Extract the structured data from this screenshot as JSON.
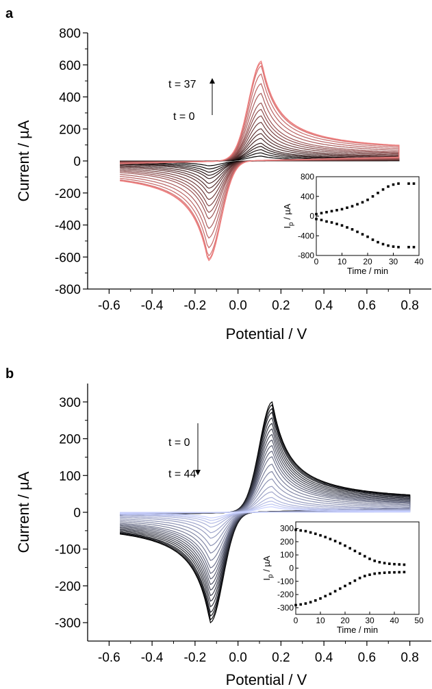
{
  "chart_data": [
    {
      "panel": "a",
      "type": "line",
      "xlabel": "Potential / V",
      "ylabel": "Current / µA",
      "xlim": [
        -0.7,
        0.9
      ],
      "ylim": [
        -800,
        800
      ],
      "xticks": [
        -0.6,
        -0.4,
        -0.2,
        0.0,
        0.2,
        0.4,
        0.6,
        0.8
      ],
      "yticks": [
        -800,
        -600,
        -400,
        -200,
        0,
        200,
        400,
        600,
        800
      ],
      "xtick_labels": [
        "-0.6",
        "-0.4",
        "-0.2",
        "0.0",
        "0.2",
        "0.4",
        "0.6",
        "0.8"
      ],
      "ytick_labels": [
        "-800",
        "-600",
        "-400",
        "-200",
        "0",
        "200",
        "400",
        "600",
        "800"
      ],
      "annotations": [
        "t = 37",
        "t = 0"
      ],
      "arrow_direction": "up",
      "cv_model": {
        "potential_range": [
          -0.55,
          0.75
        ],
        "anodic_peak_potential": 0.11,
        "cathodic_peak_potential": -0.14,
        "peak_currents": [
          30,
          50,
          70,
          90,
          110,
          140,
          170,
          200,
          240,
          280,
          320,
          360,
          420,
          480,
          540,
          590,
          610,
          620
        ],
        "color_start": "#000000",
        "color_end": "#f08080"
      },
      "inset": {
        "type": "scatter",
        "xlabel": "Time / min",
        "ylabel_main": "I",
        "ylabel_sub": "p",
        "ylabel_unit": " / µA",
        "xlim": [
          0,
          40
        ],
        "ylim": [
          -800,
          800
        ],
        "xticks": [
          0,
          10,
          20,
          30,
          40
        ],
        "yticks": [
          -800,
          -400,
          0,
          400,
          800
        ],
        "xtick_labels": [
          "0",
          "10",
          "20",
          "30",
          "40"
        ],
        "ytick_labels": [
          "-800",
          "-400",
          "0",
          "400",
          "800"
        ],
        "series": [
          {
            "x": [
              0,
              2,
              4,
              6,
              8,
              10,
              12,
              14,
              16,
              18,
              20,
              22,
              24,
              26,
              28,
              30,
              32,
              36,
              38
            ],
            "y": [
              40,
              60,
              80,
              100,
              120,
              140,
              170,
              200,
              240,
              280,
              330,
              400,
              470,
              540,
              600,
              640,
              660,
              660,
              660
            ]
          },
          {
            "x": [
              0,
              2,
              4,
              6,
              8,
              10,
              12,
              14,
              16,
              18,
              20,
              22,
              24,
              26,
              28,
              30,
              32,
              36,
              38
            ],
            "y": [
              -60,
              -80,
              -110,
              -130,
              -160,
              -190,
              -230,
              -270,
              -320,
              -370,
              -420,
              -480,
              -530,
              -570,
              -600,
              -620,
              -630,
              -630,
              -630
            ]
          }
        ]
      }
    },
    {
      "panel": "b",
      "type": "line",
      "xlabel": "Potential / V",
      "ylabel": "Current / µA",
      "xlim": [
        -0.7,
        0.9
      ],
      "ylim": [
        -350,
        350
      ],
      "xticks": [
        -0.6,
        -0.4,
        -0.2,
        0.0,
        0.2,
        0.4,
        0.6,
        0.8
      ],
      "yticks": [
        -300,
        -200,
        -100,
        0,
        100,
        200,
        300
      ],
      "xtick_labels": [
        "-0.6",
        "-0.4",
        "-0.2",
        "0.0",
        "0.2",
        "0.4",
        "0.6",
        "0.8"
      ],
      "ytick_labels": [
        "-300",
        "-200",
        "-100",
        "0",
        "100",
        "200",
        "300"
      ],
      "annotations": [
        "t = 0",
        "t = 44"
      ],
      "arrow_direction": "down",
      "cv_model": {
        "potential_range": [
          -0.55,
          0.8
        ],
        "anodic_peak_potential": 0.16,
        "cathodic_peak_potential": -0.13,
        "peak_currents": [
          298,
          290,
          280,
          270,
          255,
          240,
          225,
          210,
          195,
          180,
          165,
          150,
          130,
          110,
          90,
          70,
          55,
          40,
          30,
          22,
          15
        ],
        "color_start": "#000000",
        "color_end": "#c8d0ff"
      },
      "inset": {
        "type": "scatter",
        "xlabel": "Time / min",
        "ylabel_main": "I",
        "ylabel_sub": "p",
        "ylabel_unit": " / µA",
        "xlim": [
          0,
          50
        ],
        "ylim": [
          -350,
          350
        ],
        "xticks": [
          0,
          10,
          20,
          30,
          40,
          50
        ],
        "yticks": [
          -300,
          -200,
          -100,
          0,
          100,
          200,
          300
        ],
        "xtick_labels": [
          "0",
          "10",
          "20",
          "30",
          "40",
          "50"
        ],
        "ytick_labels": [
          "-300",
          "-200",
          "-100",
          "0",
          "100",
          "200",
          "300"
        ],
        "series": [
          {
            "x": [
              0,
              2,
              4,
              6,
              8,
              10,
              12,
              14,
              16,
              18,
              20,
              22,
              24,
              26,
              28,
              30,
              32,
              34,
              36,
              38,
              40,
              42,
              44
            ],
            "y": [
              290,
              285,
              280,
              270,
              260,
              248,
              235,
              220,
              205,
              188,
              170,
              150,
              130,
              110,
              90,
              70,
              55,
              45,
              38,
              33,
              30,
              28,
              26
            ]
          },
          {
            "x": [
              0,
              2,
              4,
              6,
              8,
              10,
              12,
              14,
              16,
              18,
              20,
              22,
              24,
              26,
              28,
              30,
              32,
              34,
              36,
              38,
              40,
              42,
              44
            ],
            "y": [
              -280,
              -275,
              -268,
              -258,
              -245,
              -230,
              -212,
              -195,
              -175,
              -155,
              -135,
              -115,
              -95,
              -75,
              -60,
              -50,
              -42,
              -38,
              -35,
              -33,
              -32,
              -31,
              -30
            ]
          }
        ]
      }
    }
  ]
}
